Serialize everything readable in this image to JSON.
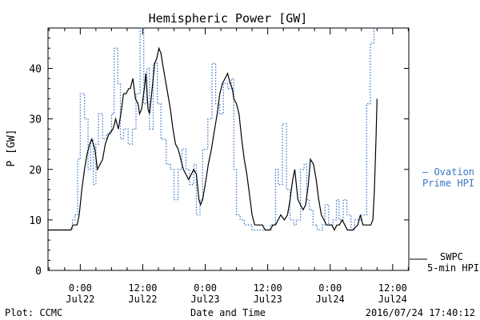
{
  "chart_data": {
    "type": "line",
    "title": "Hemispheric Power [GW]",
    "ylabel": "P [GW]",
    "xlabel": "Date and Time",
    "ylim": [
      0,
      48
    ],
    "xlim_hours": [
      -6.2,
      63.1
    ],
    "yticks": [
      0,
      10,
      20,
      30,
      40
    ],
    "xticks": [
      {
        "h": 0,
        "time": "0:00",
        "date": "Jul22"
      },
      {
        "h": 12,
        "time": "12:00",
        "date": "Jul22"
      },
      {
        "h": 24,
        "time": "0:00",
        "date": "Jul23"
      },
      {
        "h": 36,
        "time": "12:00",
        "date": "Jul23"
      },
      {
        "h": 48,
        "time": "0:00",
        "date": "Jul24"
      },
      {
        "h": 60,
        "time": "12:00",
        "date": "Jul24"
      }
    ],
    "x_unit": "hours since Jul22 0:00",
    "series": [
      {
        "name": "Ovation Prime HPI",
        "color": "#3a78c8",
        "style": "dotted-step",
        "points": [
          [
            -6.2,
            8
          ],
          [
            -1.5,
            8
          ],
          [
            -1.5,
            10
          ],
          [
            -1,
            10
          ],
          [
            -1,
            11
          ],
          [
            -0.5,
            11
          ],
          [
            -0.5,
            22
          ],
          [
            0,
            22
          ],
          [
            0,
            35
          ],
          [
            0.8,
            35
          ],
          [
            0.8,
            30
          ],
          [
            1.5,
            30
          ],
          [
            1.5,
            20
          ],
          [
            2,
            20
          ],
          [
            2,
            26
          ],
          [
            2.5,
            26
          ],
          [
            2.5,
            17
          ],
          [
            3,
            17
          ],
          [
            3,
            25
          ],
          [
            3.5,
            25
          ],
          [
            3.5,
            31
          ],
          [
            4.3,
            31
          ],
          [
            4.3,
            26
          ],
          [
            5,
            26
          ],
          [
            5,
            27
          ],
          [
            6,
            27
          ],
          [
            6,
            31
          ],
          [
            6.5,
            31
          ],
          [
            6.5,
            44
          ],
          [
            7.2,
            44
          ],
          [
            7.2,
            37
          ],
          [
            7.7,
            37
          ],
          [
            7.7,
            26
          ],
          [
            8.3,
            26
          ],
          [
            8.3,
            28
          ],
          [
            9.2,
            28
          ],
          [
            9.2,
            25
          ],
          [
            10,
            25
          ],
          [
            10,
            28
          ],
          [
            10.7,
            28
          ],
          [
            10.7,
            35
          ],
          [
            11.5,
            35
          ],
          [
            11.5,
            48
          ],
          [
            12.2,
            48
          ],
          [
            12.2,
            33
          ],
          [
            12.8,
            33
          ],
          [
            12.8,
            40
          ],
          [
            13.3,
            40
          ],
          [
            13.3,
            28
          ],
          [
            14,
            28
          ],
          [
            14,
            41
          ],
          [
            14.8,
            41
          ],
          [
            14.8,
            33
          ],
          [
            15.5,
            33
          ],
          [
            15.5,
            26
          ],
          [
            16.5,
            26
          ],
          [
            16.5,
            21
          ],
          [
            17.3,
            21
          ],
          [
            17.3,
            20
          ],
          [
            18,
            20
          ],
          [
            18,
            14
          ],
          [
            18.8,
            14
          ],
          [
            18.8,
            20
          ],
          [
            19.5,
            20
          ],
          [
            19.5,
            24
          ],
          [
            20.3,
            24
          ],
          [
            20.3,
            20
          ],
          [
            21,
            20
          ],
          [
            21,
            17
          ],
          [
            21.8,
            17
          ],
          [
            21.8,
            21
          ],
          [
            22.3,
            21
          ],
          [
            22.3,
            11
          ],
          [
            23,
            11
          ],
          [
            23,
            14
          ],
          [
            23.5,
            14
          ],
          [
            23.5,
            24
          ],
          [
            24.5,
            24
          ],
          [
            24.5,
            30
          ],
          [
            25.3,
            30
          ],
          [
            25.3,
            41
          ],
          [
            26,
            41
          ],
          [
            26,
            33
          ],
          [
            26.8,
            33
          ],
          [
            26.8,
            31
          ],
          [
            27.5,
            31
          ],
          [
            27.5,
            37
          ],
          [
            28.3,
            37
          ],
          [
            28.3,
            36
          ],
          [
            29,
            36
          ],
          [
            29,
            38
          ],
          [
            29.5,
            38
          ],
          [
            29.5,
            20
          ],
          [
            30,
            20
          ],
          [
            30,
            11
          ],
          [
            30.7,
            11
          ],
          [
            30.7,
            10
          ],
          [
            31.5,
            10
          ],
          [
            31.5,
            9
          ],
          [
            33,
            9
          ],
          [
            33,
            8
          ],
          [
            36.5,
            8
          ],
          [
            36.5,
            9
          ],
          [
            37.5,
            9
          ],
          [
            37.5,
            20
          ],
          [
            38,
            20
          ],
          [
            38,
            17
          ],
          [
            38.8,
            17
          ],
          [
            38.8,
            29
          ],
          [
            39.6,
            29
          ],
          [
            39.6,
            16
          ],
          [
            40.3,
            16
          ],
          [
            40.3,
            10
          ],
          [
            41,
            10
          ],
          [
            41,
            9
          ],
          [
            41.5,
            9
          ],
          [
            41.5,
            10
          ],
          [
            42.3,
            10
          ],
          [
            42.3,
            20
          ],
          [
            43,
            20
          ],
          [
            43,
            21
          ],
          [
            43.5,
            21
          ],
          [
            43.5,
            14
          ],
          [
            44,
            14
          ],
          [
            44,
            12
          ],
          [
            44.7,
            12
          ],
          [
            44.7,
            9
          ],
          [
            45.5,
            9
          ],
          [
            45.5,
            8
          ],
          [
            46.5,
            8
          ],
          [
            46.5,
            9
          ],
          [
            47,
            9
          ],
          [
            47,
            13
          ],
          [
            47.7,
            13
          ],
          [
            47.7,
            9
          ],
          [
            48.5,
            9
          ],
          [
            48.5,
            10
          ],
          [
            49.2,
            10
          ],
          [
            49.2,
            14
          ],
          [
            49.7,
            14
          ],
          [
            49.7,
            10
          ],
          [
            50.5,
            10
          ],
          [
            50.5,
            14
          ],
          [
            51.2,
            14
          ],
          [
            51.2,
            11
          ],
          [
            52,
            11
          ],
          [
            52,
            8
          ],
          [
            52.7,
            8
          ],
          [
            52.7,
            10
          ],
          [
            54,
            10
          ],
          [
            54,
            11
          ],
          [
            55,
            11
          ],
          [
            55,
            33
          ],
          [
            55.7,
            33
          ],
          [
            55.7,
            45
          ],
          [
            56.4,
            45
          ],
          [
            56.4,
            48
          ],
          [
            57,
            48
          ]
        ]
      },
      {
        "name": "SWPC 5-min HPI",
        "color": "#000000",
        "style": "solid",
        "points": [
          [
            -6.2,
            8
          ],
          [
            -1.8,
            8
          ],
          [
            -1.4,
            9
          ],
          [
            -0.6,
            9
          ],
          [
            -0.2,
            11
          ],
          [
            0.3,
            16
          ],
          [
            0.8,
            20
          ],
          [
            1.3,
            23
          ],
          [
            1.8,
            25
          ],
          [
            2.2,
            26
          ],
          [
            2.8,
            24
          ],
          [
            3.3,
            20
          ],
          [
            3.8,
            21
          ],
          [
            4.3,
            22
          ],
          [
            4.8,
            25
          ],
          [
            5.5,
            27
          ],
          [
            6.3,
            28
          ],
          [
            6.8,
            30
          ],
          [
            7.3,
            28
          ],
          [
            7.8,
            31
          ],
          [
            8.3,
            35
          ],
          [
            8.8,
            35
          ],
          [
            9.3,
            36
          ],
          [
            9.6,
            36
          ],
          [
            10.1,
            38
          ],
          [
            10.6,
            34
          ],
          [
            11.1,
            33
          ],
          [
            11.4,
            31
          ],
          [
            11.8,
            32
          ],
          [
            12.3,
            36
          ],
          [
            12.6,
            39
          ],
          [
            13,
            32
          ],
          [
            13.3,
            31
          ],
          [
            13.8,
            36
          ],
          [
            14.3,
            41
          ],
          [
            14.7,
            42
          ],
          [
            15.1,
            44
          ],
          [
            15.5,
            43
          ],
          [
            15.8,
            41
          ],
          [
            16.3,
            38
          ],
          [
            16.8,
            35
          ],
          [
            17.3,
            32
          ],
          [
            17.8,
            28
          ],
          [
            18.3,
            25
          ],
          [
            18.8,
            24
          ],
          [
            19.3,
            22
          ],
          [
            19.8,
            20
          ],
          [
            20.3,
            19
          ],
          [
            20.8,
            18
          ],
          [
            21.3,
            19
          ],
          [
            21.8,
            20
          ],
          [
            22.3,
            19
          ],
          [
            22.8,
            14
          ],
          [
            23.1,
            13
          ],
          [
            23.5,
            14
          ],
          [
            24,
            17
          ],
          [
            24.6,
            21
          ],
          [
            25.2,
            24
          ],
          [
            25.8,
            28
          ],
          [
            26.3,
            31
          ],
          [
            26.8,
            35
          ],
          [
            27.3,
            37
          ],
          [
            27.8,
            38
          ],
          [
            28.3,
            39
          ],
          [
            28.8,
            37
          ],
          [
            29.2,
            36
          ],
          [
            29.5,
            34
          ],
          [
            30,
            33
          ],
          [
            30.5,
            31
          ],
          [
            31,
            26
          ],
          [
            31.5,
            22
          ],
          [
            32,
            19
          ],
          [
            32.5,
            15
          ],
          [
            33,
            11
          ],
          [
            33.5,
            9
          ],
          [
            34,
            9
          ],
          [
            35,
            9
          ],
          [
            35.5,
            8
          ],
          [
            36.5,
            8
          ],
          [
            37,
            9
          ],
          [
            37.5,
            9
          ],
          [
            38,
            10
          ],
          [
            38.5,
            11
          ],
          [
            39.2,
            10
          ],
          [
            39.8,
            11
          ],
          [
            40.3,
            14
          ],
          [
            40.8,
            18
          ],
          [
            41.2,
            20
          ],
          [
            41.5,
            17
          ],
          [
            41.8,
            14
          ],
          [
            42.3,
            13
          ],
          [
            42.8,
            12
          ],
          [
            43.3,
            13
          ],
          [
            43.8,
            17
          ],
          [
            44.2,
            22
          ],
          [
            44.8,
            21
          ],
          [
            45.3,
            18
          ],
          [
            45.8,
            14
          ],
          [
            46.3,
            11
          ],
          [
            46.8,
            10
          ],
          [
            47.3,
            9
          ],
          [
            48.3,
            9
          ],
          [
            48.8,
            8
          ],
          [
            49.3,
            9
          ],
          [
            49.8,
            9
          ],
          [
            50.3,
            10
          ],
          [
            50.8,
            9
          ],
          [
            51.3,
            8
          ],
          [
            52.3,
            8
          ],
          [
            53.3,
            9
          ],
          [
            53.8,
            11
          ],
          [
            54.3,
            9
          ],
          [
            55.3,
            9
          ],
          [
            55.8,
            9
          ],
          [
            56.2,
            10
          ],
          [
            56.5,
            16
          ],
          [
            56.8,
            26
          ],
          [
            57,
            34
          ]
        ]
      }
    ]
  },
  "labels": {
    "legend_ovation_line1": "— Ovation",
    "legend_ovation_line2": "Prime HPI",
    "legend_swpc_line1": "SWPC",
    "legend_swpc_line2": "5-min HPI",
    "footer_left": "Plot: CCMC",
    "footer_right": "2016/07/24 17:40:12"
  }
}
